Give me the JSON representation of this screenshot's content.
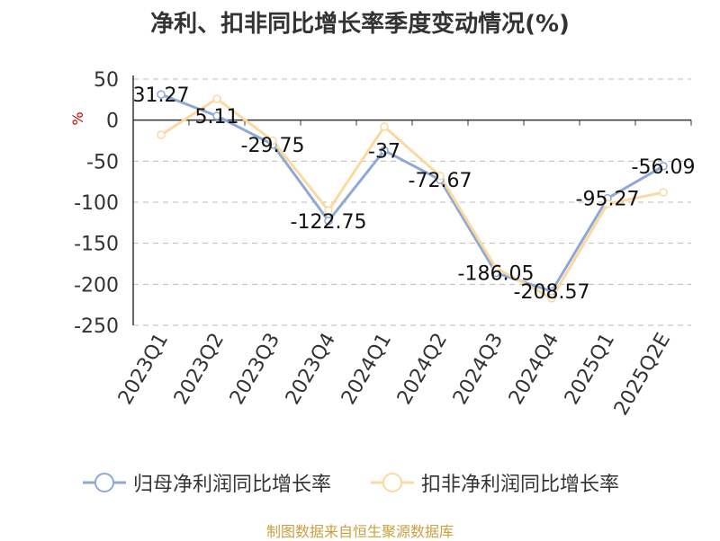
{
  "title": "净利、扣非同比增长率季度变动情况(%)",
  "footer": "制图数据来自恒生聚源数据库",
  "colors": {
    "series1": "#8fa9d6",
    "series2": "#fbd9a0",
    "axis": "#333333",
    "grid": "#bbbbbb",
    "unit": "#cc0000"
  },
  "chart_data": {
    "type": "line",
    "categories": [
      "2023Q1",
      "2023Q2",
      "2023Q3",
      "2023Q4",
      "2024Q1",
      "2024Q2",
      "2024Q3",
      "2024Q4",
      "2025Q1",
      "2025Q2E"
    ],
    "ylim": [
      -250,
      50
    ],
    "yticks": [
      50,
      0,
      -50,
      -100,
      -150,
      -200,
      -250
    ],
    "ylabel": "%",
    "xlabel": "",
    "grid": true,
    "legend_position": "bottom",
    "series": [
      {
        "name": "归母净利润同比增长率",
        "values": [
          31.27,
          5.11,
          -29.75,
          -122.75,
          -37,
          -72.67,
          -186.05,
          -208.57,
          -95.27,
          -56.09
        ],
        "labels": [
          "31.27",
          "5.11",
          "-29.75",
          "-122.75",
          "-37",
          "-72.67",
          "-186.05",
          "-208.57",
          "-95.27",
          "-56.09"
        ]
      },
      {
        "name": "扣非净利润同比增长率",
        "values": [
          -18,
          26,
          -25,
          -110,
          -8,
          -68,
          -180,
          -217,
          -102,
          -88
        ]
      }
    ]
  }
}
